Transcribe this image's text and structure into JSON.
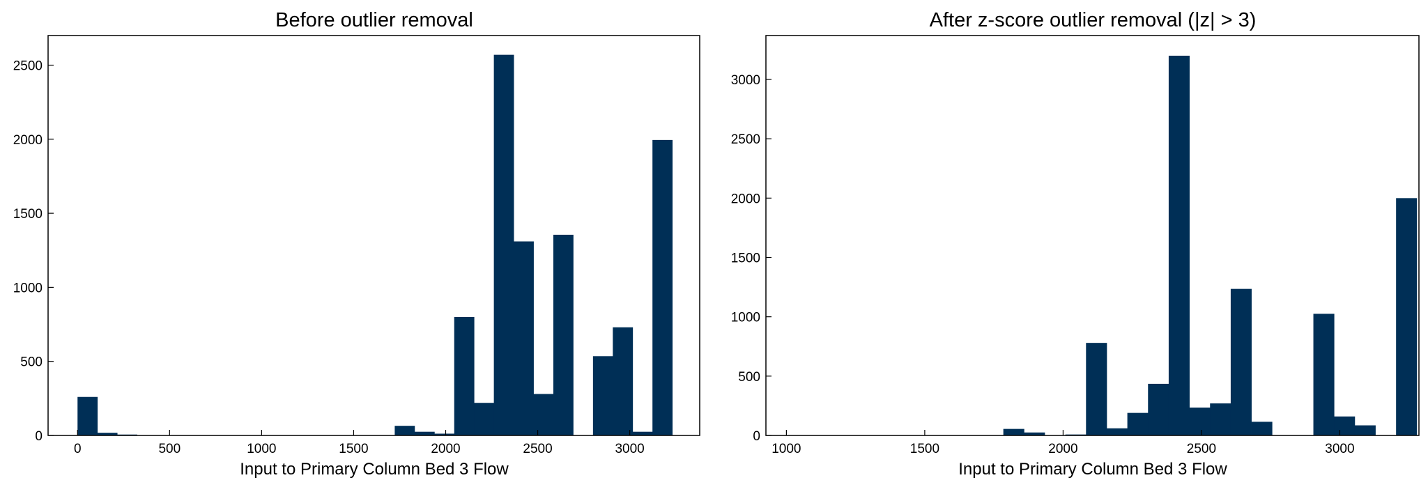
{
  "figure": {
    "bar_color": "#002f56",
    "background": "#ffffff"
  },
  "chart_data": [
    {
      "type": "bar",
      "title": "Before outlier removal",
      "xlabel": "Input to Primary Column Bed 3 Flow",
      "ylabel": "",
      "xlim": [
        -160,
        3380
      ],
      "ylim": [
        0,
        2700
      ],
      "xticks": [
        0,
        500,
        1000,
        1500,
        2000,
        2500,
        3000
      ],
      "yticks": [
        0,
        500,
        1000,
        1500,
        2000,
        2500
      ],
      "grid": false,
      "bin_width": 107.7,
      "bin_edges_start": 0,
      "values": [
        260,
        18,
        6,
        0,
        0,
        0,
        0,
        0,
        0,
        0,
        0,
        0,
        0,
        0,
        0,
        0,
        65,
        25,
        12,
        800,
        220,
        2570,
        1310,
        280,
        1355,
        0,
        535,
        730,
        25,
        1995
      ]
    },
    {
      "type": "bar",
      "title": "After z-score outlier removal (|z| > 3)",
      "xlabel": "Input to Primary Column Bed 3 Flow",
      "ylabel": "",
      "xlim": [
        926,
        3286
      ],
      "ylim": [
        0,
        3370
      ],
      "xticks": [
        1000,
        1500,
        2000,
        2500,
        3000
      ],
      "yticks": [
        0,
        500,
        1000,
        1500,
        2000,
        2500,
        3000
      ],
      "grid": false,
      "bin_width": 74.7,
      "bin_edges_start": 1037,
      "values": [
        0,
        0,
        0,
        0,
        0,
        0,
        0,
        0,
        0,
        0,
        55,
        25,
        0,
        8,
        780,
        60,
        190,
        435,
        3200,
        235,
        270,
        1235,
        115,
        0,
        0,
        1025,
        160,
        85,
        0,
        2000
      ]
    }
  ]
}
